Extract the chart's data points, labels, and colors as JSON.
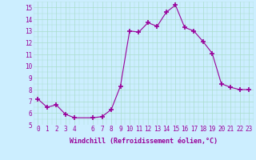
{
  "x": [
    0,
    1,
    2,
    3,
    4,
    6,
    7,
    8,
    9,
    10,
    11,
    12,
    13,
    14,
    15,
    16,
    17,
    18,
    19,
    20,
    21,
    22,
    23
  ],
  "y": [
    7.2,
    6.5,
    6.7,
    5.9,
    5.6,
    5.6,
    5.7,
    6.3,
    8.3,
    13.0,
    12.9,
    13.7,
    13.4,
    14.6,
    15.2,
    13.3,
    13.0,
    12.1,
    11.1,
    8.5,
    8.2,
    8.0,
    8.0
  ],
  "line_color": "#990099",
  "marker": "+",
  "marker_size": 4,
  "marker_lw": 1.2,
  "bg_color": "#cceeff",
  "grid_color": "#aaddcc",
  "xlabel": "Windchill (Refroidissement éolien,°C)",
  "xlabel_fontsize": 6.0,
  "tick_fontsize": 5.5,
  "xlim": [
    -0.5,
    23.5
  ],
  "ylim": [
    5,
    15.5
  ],
  "yticks": [
    5,
    6,
    7,
    8,
    9,
    10,
    11,
    12,
    13,
    14,
    15
  ],
  "xticks": [
    0,
    1,
    2,
    3,
    4,
    6,
    7,
    8,
    9,
    10,
    11,
    12,
    13,
    14,
    15,
    16,
    17,
    18,
    19,
    20,
    21,
    22,
    23
  ]
}
